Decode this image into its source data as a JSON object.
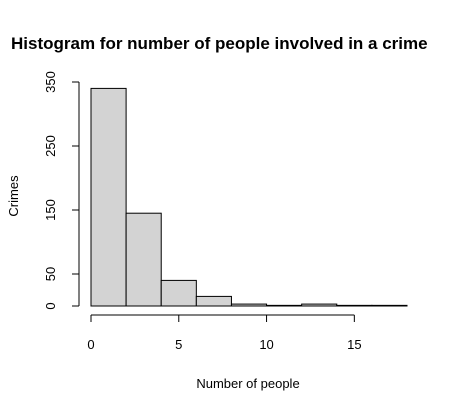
{
  "chart_data": {
    "type": "bar",
    "title": "Histogram for number of people involved in a crime",
    "xlabel": "Number of people",
    "ylabel": "Crimes",
    "xlim": [
      0,
      18
    ],
    "ylim": [
      0,
      350
    ],
    "x_ticks": [
      0,
      5,
      10,
      15
    ],
    "y_ticks": [
      0,
      50,
      150,
      250,
      350
    ],
    "bin_edges": [
      0,
      2,
      4,
      6,
      8,
      10,
      12,
      14,
      16,
      18
    ],
    "values": [
      340,
      145,
      40,
      15,
      3,
      1,
      3,
      1,
      1
    ],
    "grid": false,
    "legend": "none",
    "colors": {
      "bar_fill": "#d3d3d3",
      "bar_stroke": "#000000"
    }
  }
}
